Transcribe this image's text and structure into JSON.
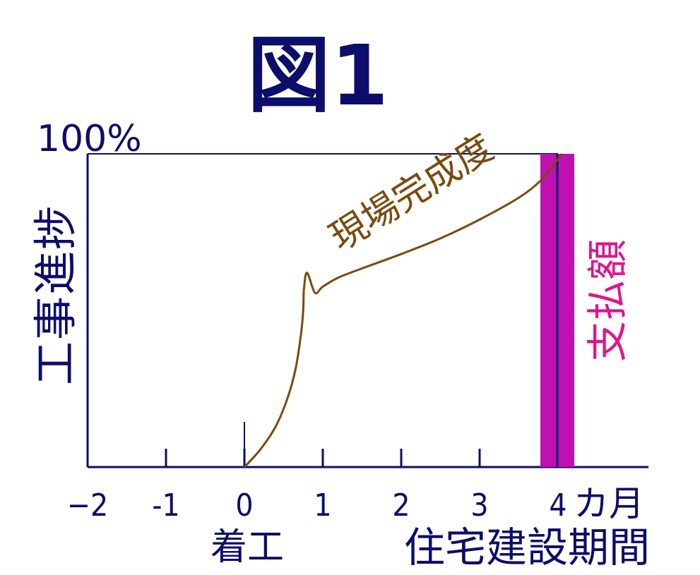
{
  "chart_data": {
    "type": "line",
    "title": "図1",
    "ylabel": "工事進捗",
    "y_max_label": "100%",
    "xlabel": "住宅建設期間",
    "x_unit": "カ月",
    "start_label": "着工",
    "xlim": [
      -2,
      5
    ],
    "ylim": [
      0,
      100
    ],
    "ticks": [
      {
        "value": -2,
        "label": "−2"
      },
      {
        "value": -1,
        "label": "-1"
      },
      {
        "value": 0,
        "label": "0"
      },
      {
        "value": 1,
        "label": "1"
      },
      {
        "value": 2,
        "label": "2"
      },
      {
        "value": 3,
        "label": "3"
      },
      {
        "value": 4,
        "label": "4"
      }
    ],
    "series": [
      {
        "name": "現場完成度",
        "color": "#7a4a0e",
        "points": [
          [
            0,
            0
          ],
          [
            0.2,
            5.5
          ],
          [
            0.4,
            13
          ],
          [
            0.55,
            22
          ],
          [
            0.65,
            31
          ],
          [
            0.72,
            42
          ],
          [
            0.75,
            50
          ],
          [
            0.76,
            57
          ],
          [
            0.8,
            62
          ],
          [
            0.9,
            55.6
          ],
          [
            1.0,
            57.6
          ],
          [
            1.2,
            60.5
          ],
          [
            1.5,
            63.4
          ],
          [
            2.0,
            68
          ],
          [
            2.5,
            73
          ],
          [
            3.0,
            79
          ],
          [
            3.5,
            86
          ],
          [
            3.8,
            92
          ],
          [
            4.05,
            100
          ]
        ]
      }
    ],
    "payment": {
      "label": "支払額",
      "x": 4,
      "value": 100,
      "color": "#c010b0",
      "label_color": "#e0148c"
    },
    "colors": {
      "axis": "#0d0d6b"
    }
  }
}
